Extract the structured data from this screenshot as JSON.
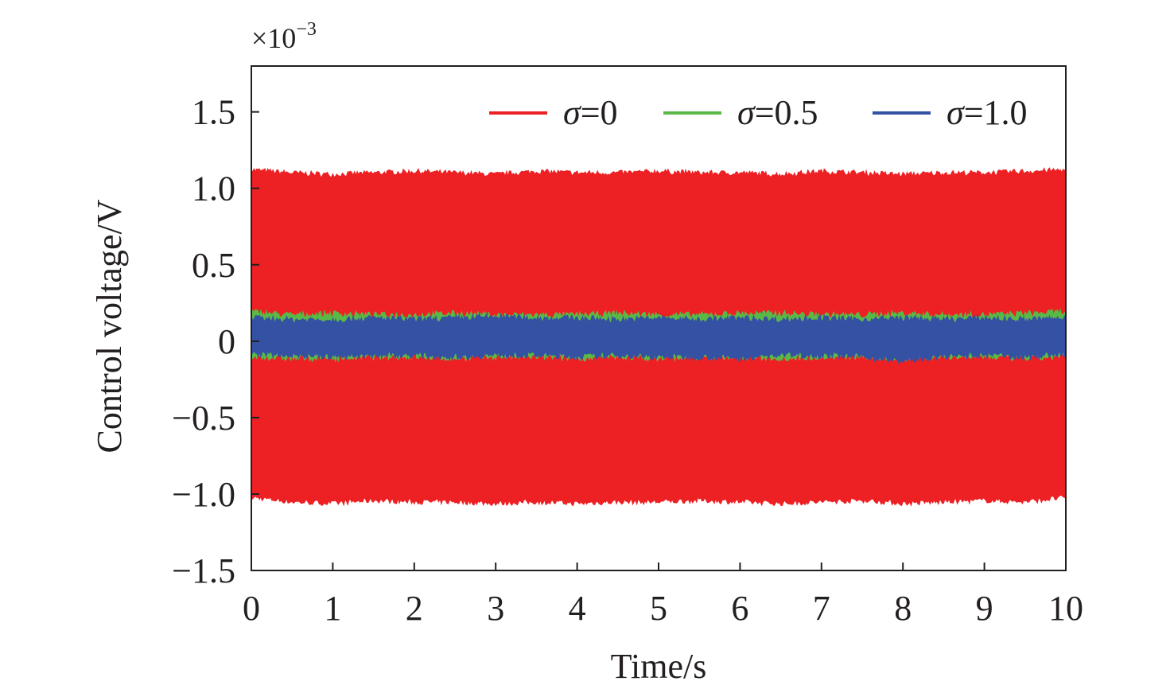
{
  "chart_data": {
    "type": "area",
    "xlabel": "Time/s",
    "ylabel": "Control voltage/V",
    "y_scale_factor": "×10",
    "y_scale_exponent": "−3",
    "xlim": [
      0,
      10
    ],
    "ylim": [
      -1.5,
      1.8
    ],
    "x_ticks": [
      0,
      1,
      2,
      3,
      4,
      5,
      6,
      7,
      8,
      9,
      10
    ],
    "x_tick_labels": [
      "0",
      "1",
      "2",
      "3",
      "4",
      "5",
      "6",
      "7",
      "8",
      "9",
      "10"
    ],
    "y_ticks": [
      -1.5,
      -1.0,
      -0.5,
      0,
      0.5,
      1.0,
      1.5
    ],
    "y_tick_labels": [
      "−1.5",
      "−1.0",
      "−0.5",
      "0",
      "0.5",
      "1.0",
      "1.5"
    ],
    "grid": false,
    "legend_position": "top-right",
    "series": [
      {
        "name": "σ=0",
        "symbol": "σ",
        "value": "=0",
        "color": "#ed2024",
        "band_x": [
          0,
          0.5,
          1,
          1.5,
          2,
          2.5,
          3,
          3.5,
          4,
          4.5,
          5,
          5.5,
          6,
          6.5,
          7,
          7.5,
          8,
          8.5,
          9,
          9.5,
          10
        ],
        "band_upper": [
          1.12,
          1.1,
          1.09,
          1.1,
          1.11,
          1.1,
          1.09,
          1.11,
          1.1,
          1.1,
          1.11,
          1.1,
          1.1,
          1.09,
          1.11,
          1.1,
          1.09,
          1.1,
          1.1,
          1.11,
          1.12
        ],
        "band_lower": [
          -1.02,
          -1.05,
          -1.06,
          -1.04,
          -1.05,
          -1.05,
          -1.06,
          -1.05,
          -1.06,
          -1.05,
          -1.05,
          -1.04,
          -1.05,
          -1.06,
          -1.05,
          -1.04,
          -1.06,
          -1.05,
          -1.04,
          -1.05,
          -1.02
        ]
      },
      {
        "name": "σ=0.5",
        "symbol": "σ",
        "value": "=0.5",
        "color": "#5ab946",
        "band_x": [
          0,
          0.5,
          1,
          1.5,
          2,
          2.5,
          3,
          3.5,
          4,
          4.5,
          5,
          5.5,
          6,
          6.5,
          7,
          7.5,
          8,
          8.5,
          9,
          9.5,
          10
        ],
        "band_upper": [
          0.19,
          0.17,
          0.18,
          0.17,
          0.17,
          0.18,
          0.17,
          0.17,
          0.17,
          0.18,
          0.17,
          0.17,
          0.18,
          0.18,
          0.17,
          0.17,
          0.18,
          0.17,
          0.17,
          0.18,
          0.19
        ],
        "band_lower": [
          -0.1,
          -0.11,
          -0.11,
          -0.1,
          -0.1,
          -0.11,
          -0.1,
          -0.1,
          -0.11,
          -0.1,
          -0.11,
          -0.1,
          -0.1,
          -0.11,
          -0.1,
          -0.1,
          -0.11,
          -0.1,
          -0.1,
          -0.11,
          -0.1
        ]
      },
      {
        "name": "σ=1.0",
        "symbol": "σ",
        "value": "=1.0",
        "color": "#3451a4",
        "band_x": [
          0,
          0.5,
          1,
          1.5,
          2,
          2.5,
          3,
          3.5,
          4,
          4.5,
          5,
          5.5,
          6,
          6.5,
          7,
          7.5,
          8,
          8.5,
          9,
          9.5,
          10
        ],
        "band_upper": [
          0.15,
          0.14,
          0.14,
          0.15,
          0.14,
          0.15,
          0.16,
          0.15,
          0.15,
          0.14,
          0.15,
          0.14,
          0.15,
          0.14,
          0.15,
          0.14,
          0.15,
          0.14,
          0.15,
          0.14,
          0.15
        ],
        "band_lower": [
          -0.08,
          -0.09,
          -0.1,
          -0.09,
          -0.09,
          -0.1,
          -0.09,
          -0.09,
          -0.1,
          -0.09,
          -0.1,
          -0.1,
          -0.11,
          -0.09,
          -0.09,
          -0.1,
          -0.13,
          -0.1,
          -0.09,
          -0.1,
          -0.08
        ]
      }
    ]
  }
}
